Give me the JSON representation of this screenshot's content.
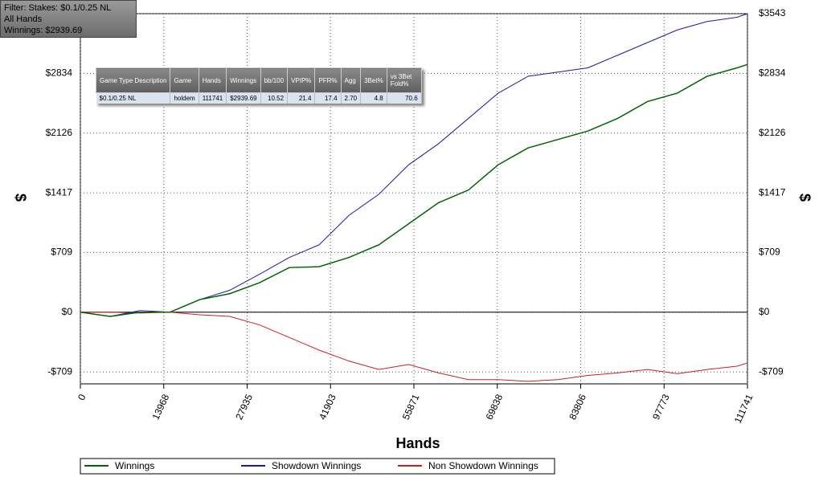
{
  "chart_data": {
    "type": "line",
    "xlabel": "Hands",
    "ylabel": "$",
    "x": [
      0,
      5000,
      10000,
      15000,
      20000,
      25000,
      30000,
      35000,
      40000,
      45000,
      50000,
      55000,
      60000,
      65000,
      70000,
      75000,
      80000,
      85000,
      90000,
      95000,
      100000,
      105000,
      110000,
      111741
    ],
    "series": [
      {
        "name": "Winnings",
        "color": "#006400",
        "values": [
          0,
          -50,
          0,
          0,
          150,
          220,
          350,
          530,
          540,
          650,
          800,
          1050,
          1300,
          1450,
          1750,
          1950,
          2050,
          2150,
          2300,
          2500,
          2600,
          2800,
          2900,
          2940
        ]
      },
      {
        "name": "Showdown Winnings",
        "color": "#1a1aa6",
        "values": [
          0,
          -50,
          20,
          0,
          150,
          260,
          450,
          650,
          800,
          1150,
          1400,
          1750,
          2000,
          2300,
          2600,
          2800,
          2850,
          2900,
          3050,
          3200,
          3350,
          3450,
          3500,
          3543
        ]
      },
      {
        "name": "Non Showdown Winnings",
        "color": "#c82020",
        "values": [
          0,
          0,
          -10,
          0,
          -30,
          -50,
          -150,
          -300,
          -450,
          -580,
          -680,
          -620,
          -720,
          -800,
          -800,
          -820,
          -800,
          -750,
          -720,
          -680,
          -730,
          -680,
          -640,
          -603
        ]
      }
    ],
    "xlim": [
      0,
      111741
    ],
    "xticks": [
      0,
      13968,
      27935,
      41903,
      55871,
      69838,
      83806,
      97773,
      111741
    ],
    "ylim": [
      -850,
      3543
    ],
    "yticks": [
      {
        "value": 3543,
        "label": "$3543"
      },
      {
        "value": 2834,
        "label": "$2834"
      },
      {
        "value": 2126,
        "label": "$2126"
      },
      {
        "value": 1417,
        "label": "$1417"
      },
      {
        "value": 709,
        "label": "$709"
      },
      {
        "value": 0,
        "label": "$0"
      },
      {
        "value": -709,
        "label": "-$709"
      }
    ],
    "grid": true,
    "legend": "bottom"
  },
  "filter_box": [
    "Filter: Stakes: $0.1/0.25 NL",
    "All Hands",
    "Winnings: $2939.69"
  ],
  "stats_table": {
    "headers": [
      "Game Type Description",
      "Game",
      "Hands",
      "Winnings",
      "bb/100",
      "VPIP%",
      "PFR%",
      "Agg",
      "3Bet%",
      "vs 3Bet Fold%"
    ],
    "rows": [
      [
        "$0.1/0.25 NL",
        "holdem",
        "111741",
        "$2939.69",
        "10.52",
        "21.4",
        "17.4",
        "2.70",
        "4.8",
        "70.6"
      ]
    ]
  }
}
